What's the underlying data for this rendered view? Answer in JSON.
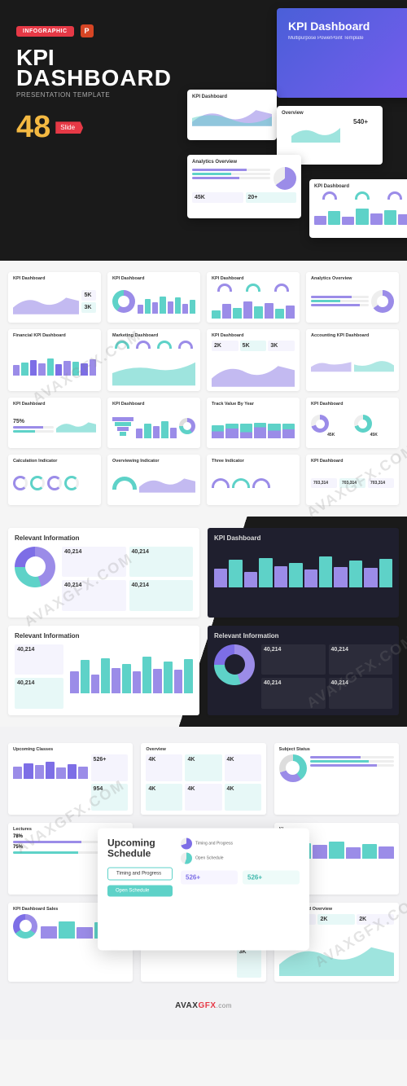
{
  "colors": {
    "purple": "#9b8ce8",
    "purple_dark": "#7d6ee6",
    "teal": "#5ed2c8",
    "teal_dark": "#3fb8ac",
    "red": "#e63946",
    "gold": "#f4b942",
    "dark_bg": "#1a1a1a",
    "dark_card": "#1f1f2e"
  },
  "hero": {
    "badge": "INFOGRAPHIC",
    "title_l1": "KPI",
    "title_l2": "DASHBOARD",
    "subtitle": "PRESENTATION TEMPLATE",
    "count": "48",
    "count_label": "Slide",
    "big_tile": {
      "title": "KPI Dashboard",
      "sub": "Multipurpose PowerPoint Template"
    },
    "tiles": [
      {
        "title": "KPI Dashboard"
      },
      {
        "title": "Overview",
        "stat": "540+"
      },
      {
        "title": "Analytics Overview",
        "stats": [
          "45K",
          "20+"
        ]
      },
      {
        "title": "KPI Dashboard"
      }
    ]
  },
  "section2": {
    "slides": [
      {
        "title": "KPI Dashboard",
        "type": "area-stat"
      },
      {
        "title": "KPI Dashboard",
        "type": "donut-bars"
      },
      {
        "title": "KPI Dashboard",
        "type": "gauges-bars"
      },
      {
        "title": "Analytics Overview",
        "type": "area-prog"
      },
      {
        "title": "Financial KPI Dashboard",
        "type": "bars-multi"
      },
      {
        "title": "Marketing Dashboard",
        "type": "gauges-line"
      },
      {
        "title": "KPI Dashboard",
        "type": "metrics-area"
      },
      {
        "title": "Accounting KPI Dashboard",
        "type": "area-split"
      },
      {
        "title": "KPI Dashboard",
        "type": "prog-area",
        "stat": "75%"
      },
      {
        "title": "KPI Dashboard",
        "type": "funnel-bars"
      },
      {
        "title": "Track Value By Year",
        "type": "stacked-bars"
      },
      {
        "title": "KPI Dashboard",
        "type": "circles",
        "stats": [
          "45K",
          "45K"
        ]
      },
      {
        "title": "Calculation Indicator",
        "type": "ring-meters"
      },
      {
        "title": "Overviewing Indicator",
        "type": "gauge-area"
      },
      {
        "title": "Three Indicator",
        "type": "three-gauges"
      },
      {
        "title": "KPI Dashboard",
        "type": "three-cards",
        "stats": [
          "703,314",
          "703,314",
          "703,314"
        ]
      }
    ],
    "bars_a": [
      35,
      60,
      45,
      70,
      50,
      65,
      40,
      55
    ],
    "bars_b": [
      45,
      55,
      65,
      50,
      70,
      48,
      62,
      58,
      52,
      68
    ],
    "bars_stacked": [
      [
        30,
        25
      ],
      [
        40,
        20
      ],
      [
        25,
        35
      ],
      [
        45,
        18
      ],
      [
        32,
        28
      ],
      [
        38,
        24
      ]
    ]
  },
  "section3": {
    "slides": [
      {
        "title": "Relevant Information",
        "dark": false,
        "type": "donut-4stat",
        "stats": [
          "40,214",
          "40,214",
          "40,214",
          "40,214"
        ]
      },
      {
        "title": "KPI Dashboard",
        "dark": true,
        "type": "bars-line"
      },
      {
        "title": "Relevant Information",
        "dark": false,
        "type": "stat-bars",
        "stats": [
          "40,214",
          "40,214"
        ]
      },
      {
        "title": "Relevant Information",
        "dark": true,
        "type": "donut-4stat-d",
        "stats": [
          "40,214",
          "40,214",
          "40,214",
          "40,214"
        ]
      }
    ],
    "bars": [
      45,
      68,
      38,
      72,
      52,
      60,
      44,
      75,
      50,
      65,
      48,
      70
    ]
  },
  "section4": {
    "center": {
      "title": "Upcoming Schedule",
      "btn1": "Timing and Progress",
      "btn2": "Open Schedule",
      "row1": "Timing and Progress",
      "row2": "Open Schedule",
      "stat1": "526+",
      "stat2": "526+"
    },
    "slides": [
      {
        "title": "Upcoming Classes",
        "type": "bars-stats",
        "stats": [
          "526+",
          "954"
        ]
      },
      {
        "title": "Overview",
        "type": "metrics-grid"
      },
      {
        "title": "Subject Status",
        "type": "donut-list"
      },
      {
        "title": "Lectures",
        "type": "prog-donut",
        "stats": [
          "78%",
          "75%"
        ]
      },
      {
        "title": "",
        "type": "spacer"
      },
      {
        "title": "KL",
        "type": "bars-only"
      },
      {
        "title": "KPI Dashboard Sales",
        "type": "donut-bars-s"
      },
      {
        "title": "KPI Dashboard",
        "type": "bars-cards"
      },
      {
        "title": "KPI Dashboard Overview",
        "type": "area-metrics"
      }
    ],
    "bars": [
      48,
      62,
      55,
      70,
      45,
      58,
      50
    ]
  },
  "footer": {
    "part1": "AVAX",
    "part2": "GFX",
    "suffix": ".com"
  },
  "watermark": "AVAXGFX.COM"
}
